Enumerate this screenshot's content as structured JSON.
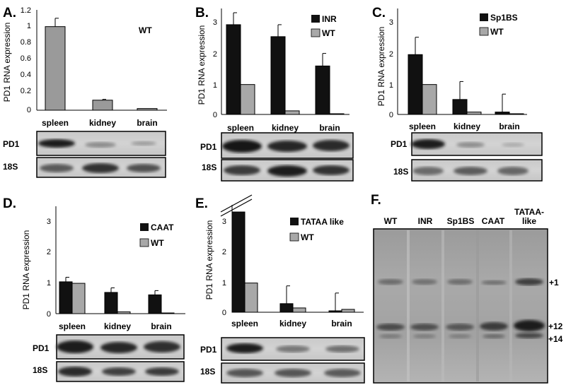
{
  "figure": {
    "blot_labels": {
      "pd1": "PD1",
      "rrna": "18S"
    }
  },
  "chart_data": [
    {
      "panel": "A.",
      "type": "bar",
      "categories": [
        "spleen",
        "kidney",
        "brain"
      ],
      "series": [
        {
          "name": "WT",
          "values": [
            1.0,
            0.12,
            0.02
          ],
          "errors": [
            0.1,
            0.01,
            0.0
          ],
          "color": "#9a9a9a"
        }
      ],
      "ylabel": "PD1 RNA expression",
      "ylim": [
        0,
        1.2
      ],
      "yticks": [
        "0",
        "0.2",
        "0.4",
        "0.6",
        "0.8",
        "1",
        "1.2"
      ],
      "legend_text": "WT"
    },
    {
      "panel": "B.",
      "type": "bar",
      "categories": [
        "spleen",
        "kidney",
        "brain"
      ],
      "series": [
        {
          "name": "INR",
          "values": [
            3.0,
            2.6,
            1.62
          ],
          "errors": [
            0.4,
            0.4,
            0.42
          ],
          "color": "#111111"
        },
        {
          "name": "WT",
          "values": [
            1.0,
            0.12,
            0.02
          ],
          "errors": [
            0,
            0,
            0
          ],
          "color": "#a8a8a8"
        }
      ],
      "ylabel": "PD1 RNA expression",
      "ylim": [
        0,
        3.4
      ],
      "yticks": [
        "0",
        "1",
        "2",
        "3"
      ]
    },
    {
      "panel": "C.",
      "type": "bar",
      "categories": [
        "spleen",
        "kidney",
        "brain"
      ],
      "series": [
        {
          "name": "Sp1BS",
          "values": [
            2.0,
            0.5,
            0.08
          ],
          "errors": [
            0.58,
            0.6,
            0.6
          ],
          "color": "#111111"
        },
        {
          "name": "WT",
          "values": [
            1.0,
            0.08,
            0.02
          ],
          "errors": [
            0,
            0,
            0
          ],
          "color": "#a8a8a8"
        }
      ],
      "ylabel": "PD1 RNA expression",
      "ylim": [
        0,
        3.4
      ],
      "yticks": [
        "0",
        "1",
        "2",
        "3"
      ]
    },
    {
      "panel": "D.",
      "type": "bar",
      "categories": [
        "spleen",
        "kidney",
        "brain"
      ],
      "series": [
        {
          "name": "CAAT",
          "values": [
            1.05,
            0.7,
            0.62
          ],
          "errors": [
            0.15,
            0.15,
            0.14
          ],
          "color": "#111111"
        },
        {
          "name": "WT",
          "values": [
            1.0,
            0.06,
            0.02
          ],
          "errors": [
            0,
            0,
            0
          ],
          "color": "#a8a8a8"
        }
      ],
      "ylabel": "PD1 RNA expression",
      "ylim": [
        0,
        3.4
      ],
      "yticks": [
        "0",
        "1",
        "2",
        "3"
      ]
    },
    {
      "panel": "E.",
      "type": "bar",
      "categories": [
        "spleen",
        "kidney",
        "brain"
      ],
      "series": [
        {
          "name": "TATAA like",
          "values": [
            3.5,
            0.3,
            0.05
          ],
          "errors": [
            0,
            0.62,
            0.62
          ],
          "color": "#111111"
        },
        {
          "name": "WT",
          "values": [
            1.02,
            0.15,
            0.1
          ],
          "errors": [
            0,
            0,
            0
          ],
          "color": "#a8a8a8"
        }
      ],
      "ylabel": "PD1 RNA expression",
      "ylim": [
        0,
        3.6
      ],
      "yticks": [
        "0",
        "1",
        "2",
        "3"
      ],
      "axis_break": true
    }
  ],
  "panel_f": {
    "panel": "F.",
    "lanes": [
      "WT",
      "INR",
      "Sp1BS",
      "CAAT",
      "TATAA-like"
    ],
    "band_labels": [
      "+1",
      "+12",
      "+14"
    ]
  }
}
